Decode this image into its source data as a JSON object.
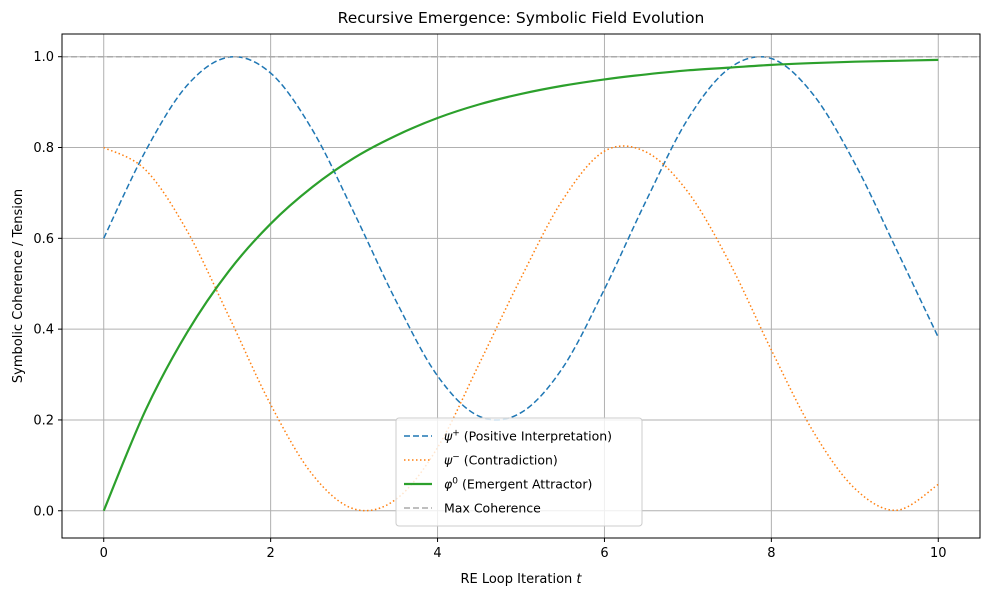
{
  "chart_data": {
    "type": "line",
    "title": "Recursive Emergence: Symbolic Field Evolution",
    "xlabel": "RE Loop Iteration",
    "xlabel_var": "t",
    "ylabel": "Symbolic Coherence / Tension",
    "xlim": [
      -0.5,
      10.5
    ],
    "ylim": [
      -0.06,
      1.05
    ],
    "xticks": [
      0,
      2,
      4,
      6,
      8,
      10
    ],
    "xtick_labels": [
      "0",
      "2",
      "4",
      "6",
      "8",
      "10"
    ],
    "yticks": [
      0.0,
      0.2,
      0.4,
      0.6,
      0.8,
      1.0
    ],
    "ytick_labels": [
      "0.0",
      "0.2",
      "0.4",
      "0.6",
      "0.8",
      "1.0"
    ],
    "grid": true,
    "legend_position": "lower-center",
    "x": [
      0,
      0.5,
      1,
      1.5,
      2,
      2.5,
      3,
      3.5,
      4,
      4.5,
      5,
      5.5,
      6,
      6.5,
      7,
      7.5,
      8,
      8.5,
      9,
      9.5,
      10
    ],
    "series": [
      {
        "name_symbol": "ψ",
        "name_sup": "+",
        "name_text": "(Positive Interpretation)",
        "color": "#1f77b4",
        "style": "dashed",
        "values": [
          0.6,
          0.792,
          0.937,
          0.999,
          0.964,
          0.839,
          0.656,
          0.463,
          0.297,
          0.208,
          0.216,
          0.315,
          0.488,
          0.683,
          0.863,
          0.975,
          0.996,
          0.917,
          0.765,
          0.575,
          0.382
        ]
      },
      {
        "name_symbol": "ψ",
        "name_sup": "−",
        "name_text": "(Contradiction)",
        "color": "#ff7f0e",
        "style": "dotted",
        "values": [
          0.8,
          0.751,
          0.616,
          0.428,
          0.234,
          0.08,
          0.004,
          0.025,
          0.139,
          0.324,
          0.513,
          0.685,
          0.792,
          0.79,
          0.702,
          0.546,
          0.354,
          0.175,
          0.049,
          0.001,
          0.058
        ]
      },
      {
        "name_symbol": "φ",
        "name_sup": "0",
        "name_text": "(Emergent Attractor)",
        "color": "#2ca02c",
        "style": "solid",
        "values": [
          0.0,
          0.221,
          0.393,
          0.528,
          0.632,
          0.713,
          0.777,
          0.826,
          0.865,
          0.895,
          0.918,
          0.936,
          0.95,
          0.961,
          0.97,
          0.976,
          0.982,
          0.986,
          0.989,
          0.991,
          0.993
        ]
      },
      {
        "name_text": "Max Coherence",
        "color": "#aaaaaa",
        "style": "dashed",
        "hline": 1.0
      }
    ]
  }
}
